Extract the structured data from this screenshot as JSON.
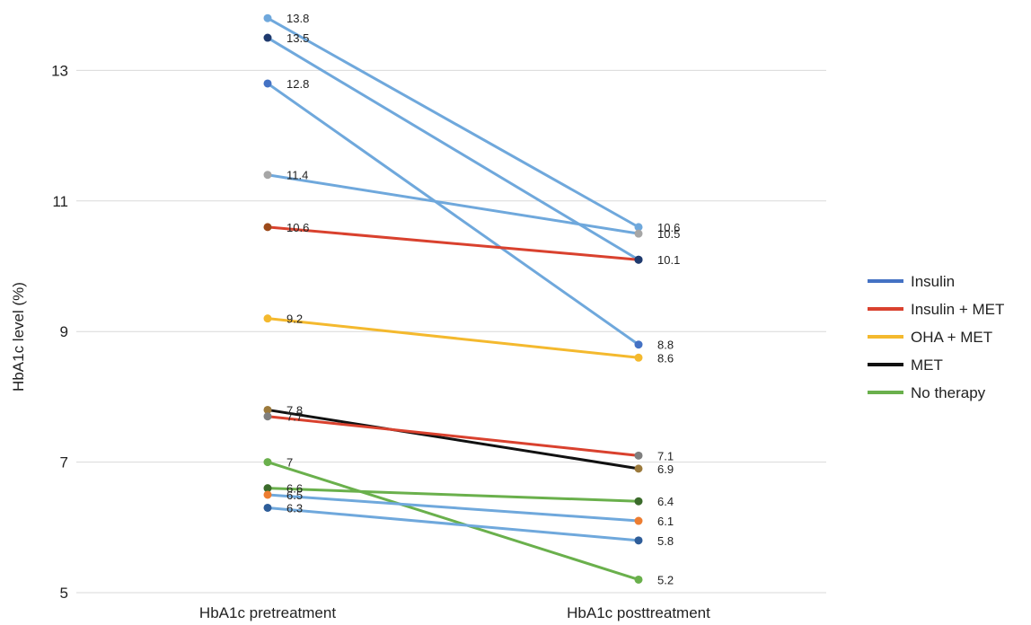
{
  "chart_data": {
    "type": "line",
    "title": "",
    "xlabel": "",
    "ylabel": "HbA1c level (%)",
    "categories": [
      "HbA1c pretreatment",
      "HbA1c posttreatment"
    ],
    "ylim": [
      5,
      13.8
    ],
    "yticks": [
      "5",
      "7",
      "9",
      "11",
      "13"
    ],
    "grid": "horizontal",
    "legend_position": "right",
    "legend": [
      {
        "label": "Insulin",
        "color": "#4472c4"
      },
      {
        "label": "Insulin + MET",
        "color": "#d9412e"
      },
      {
        "label": "OHA + MET",
        "color": "#f4b92e"
      },
      {
        "label": "MET",
        "color": "#111111"
      },
      {
        "label": "No therapy",
        "color": "#6ab04c"
      }
    ],
    "series": [
      {
        "values": [
          13.8,
          10.6
        ],
        "labels": [
          "13.8",
          "10.6"
        ],
        "line_color": "#6fa8dc",
        "marker_colors": [
          "#6fa8dc",
          "#6fa8dc"
        ]
      },
      {
        "values": [
          13.5,
          10.1
        ],
        "labels": [
          "13.5",
          "10.1"
        ],
        "line_color": "#6fa8dc",
        "marker_colors": [
          "#1f3a6e",
          "#1f3a6e"
        ]
      },
      {
        "values": [
          12.8,
          8.8
        ],
        "labels": [
          "12.8",
          "8.8"
        ],
        "line_color": "#6fa8dc",
        "marker_colors": [
          "#4472c4",
          "#4472c4"
        ]
      },
      {
        "values": [
          11.4,
          10.5
        ],
        "labels": [
          "11.4",
          "10.5"
        ],
        "line_color": "#6fa8dc",
        "marker_colors": [
          "#a6a6a6",
          "#a6a6a6"
        ]
      },
      {
        "values": [
          10.6,
          10.1
        ],
        "labels": [
          "10.6",
          ""
        ],
        "line_color": "#d9412e",
        "marker_colors": [
          "#9c4a1a",
          "#1f3a6e"
        ]
      },
      {
        "values": [
          9.2,
          8.6
        ],
        "labels": [
          "9.2",
          "8.6"
        ],
        "line_color": "#f4b92e",
        "marker_colors": [
          "#f4b92e",
          "#f4b92e"
        ]
      },
      {
        "values": [
          7.8,
          6.9
        ],
        "labels": [
          "7.8",
          "6.9"
        ],
        "line_color": "#111111",
        "marker_colors": [
          "#9c7a3c",
          "#9c7a3c"
        ]
      },
      {
        "values": [
          7.7,
          7.1
        ],
        "labels": [
          "7.7",
          "7.1"
        ],
        "line_color": "#d9412e",
        "marker_colors": [
          "#7f7f7f",
          "#7f7f7f"
        ]
      },
      {
        "values": [
          7.0,
          5.2
        ],
        "labels": [
          "7",
          "5.2"
        ],
        "line_color": "#6ab04c",
        "marker_colors": [
          "#6ab04c",
          "#6ab04c"
        ]
      },
      {
        "values": [
          6.6,
          6.4
        ],
        "labels": [
          "6.6",
          "6.4"
        ],
        "line_color": "#6ab04c",
        "marker_colors": [
          "#3b6b2b",
          "#3b6b2b"
        ]
      },
      {
        "values": [
          6.5,
          6.1
        ],
        "labels": [
          "6.5",
          "6.1"
        ],
        "line_color": "#6fa8dc",
        "marker_colors": [
          "#ed7d31",
          "#ed7d31"
        ]
      },
      {
        "values": [
          6.3,
          5.8
        ],
        "labels": [
          "6.3",
          "5.8"
        ],
        "line_color": "#6fa8dc",
        "marker_colors": [
          "#2e5d99",
          "#2e5d99"
        ]
      }
    ]
  }
}
